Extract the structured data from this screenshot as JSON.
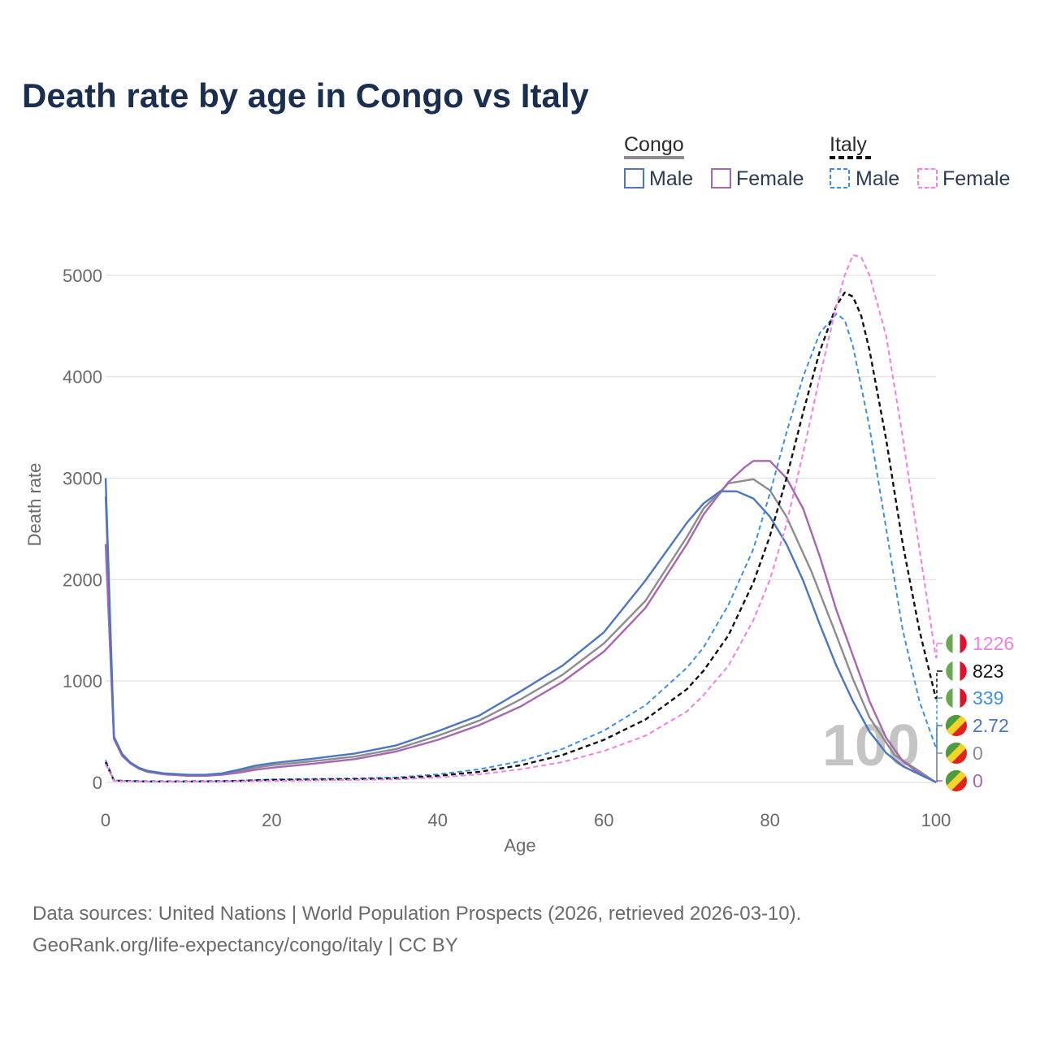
{
  "title": "Death rate by age in Congo vs Italy",
  "legend": {
    "groups": [
      {
        "name": "Congo",
        "items": [
          {
            "label": "Male"
          },
          {
            "label": "Female"
          }
        ]
      },
      {
        "name": "Italy",
        "items": [
          {
            "label": "Male"
          },
          {
            "label": "Female"
          }
        ]
      }
    ]
  },
  "colors": {
    "congo_male": "#4a76c2",
    "congo_female": "#a866b0",
    "congo_total": "#8c8c8c",
    "italy_male": "#3e8ee8",
    "italy_female": "#f27ee8",
    "italy_total": "#111111"
  },
  "current_age": "100",
  "source_lines": [
    "Data sources: United Nations | World Population Prospects (2026, retrieved 2026-03-10).",
    "GeoRank.org/life-expectancy/congo/italy | CC BY"
  ],
  "chart_data": {
    "type": "line",
    "title": "Death rate by age in Congo vs Italy",
    "xlabel": "Age",
    "ylabel": "Death rate",
    "xlim": [
      0,
      100
    ],
    "ylim": [
      0,
      5300
    ],
    "x_ticks": [
      0,
      20,
      40,
      60,
      80,
      100
    ],
    "y_ticks": [
      0,
      1000,
      2000,
      3000,
      4000,
      5000
    ],
    "grid": true,
    "series": [
      {
        "name": "Congo Total",
        "country": "Congo",
        "sex": "Total",
        "dashed": false,
        "color": "#8c8c8c",
        "points": [
          [
            0,
            2820
          ],
          [
            1,
            440
          ],
          [
            2,
            270
          ],
          [
            3,
            190
          ],
          [
            4,
            140
          ],
          [
            5,
            110
          ],
          [
            7,
            85
          ],
          [
            10,
            70
          ],
          [
            12,
            70
          ],
          [
            14,
            85
          ],
          [
            16,
            110
          ],
          [
            18,
            145
          ],
          [
            20,
            170
          ],
          [
            25,
            210
          ],
          [
            30,
            255
          ],
          [
            35,
            330
          ],
          [
            40,
            460
          ],
          [
            45,
            610
          ],
          [
            50,
            820
          ],
          [
            55,
            1060
          ],
          [
            60,
            1370
          ],
          [
            65,
            1790
          ],
          [
            70,
            2420
          ],
          [
            72,
            2700
          ],
          [
            75,
            2950
          ],
          [
            78,
            2990
          ],
          [
            80,
            2880
          ],
          [
            82,
            2620
          ],
          [
            85,
            2080
          ],
          [
            88,
            1450
          ],
          [
            90,
            1020
          ],
          [
            92,
            640
          ],
          [
            95,
            270
          ],
          [
            98,
            110
          ],
          [
            100,
            0
          ]
        ],
        "end_label": "0"
      },
      {
        "name": "Congo Female",
        "country": "Congo",
        "sex": "Female",
        "dashed": false,
        "color": "#a866b0",
        "points": [
          [
            0,
            2350
          ],
          [
            1,
            430
          ],
          [
            2,
            260
          ],
          [
            3,
            185
          ],
          [
            4,
            135
          ],
          [
            5,
            105
          ],
          [
            7,
            80
          ],
          [
            10,
            65
          ],
          [
            12,
            65
          ],
          [
            14,
            75
          ],
          [
            16,
            95
          ],
          [
            18,
            125
          ],
          [
            20,
            145
          ],
          [
            25,
            185
          ],
          [
            30,
            230
          ],
          [
            35,
            305
          ],
          [
            40,
            420
          ],
          [
            45,
            565
          ],
          [
            50,
            750
          ],
          [
            55,
            990
          ],
          [
            60,
            1290
          ],
          [
            65,
            1720
          ],
          [
            70,
            2350
          ],
          [
            72,
            2640
          ],
          [
            75,
            2960
          ],
          [
            77,
            3110
          ],
          [
            78,
            3170
          ],
          [
            80,
            3170
          ],
          [
            82,
            3000
          ],
          [
            84,
            2700
          ],
          [
            86,
            2230
          ],
          [
            88,
            1700
          ],
          [
            90,
            1250
          ],
          [
            92,
            800
          ],
          [
            94,
            440
          ],
          [
            96,
            210
          ],
          [
            98,
            90
          ],
          [
            100,
            0
          ]
        ],
        "end_label": "0"
      },
      {
        "name": "Congo Male",
        "country": "Congo",
        "sex": "Male",
        "dashed": false,
        "color": "#4a76c2",
        "points": [
          [
            0,
            3000
          ],
          [
            1,
            450
          ],
          [
            2,
            280
          ],
          [
            3,
            195
          ],
          [
            4,
            145
          ],
          [
            5,
            115
          ],
          [
            7,
            90
          ],
          [
            10,
            75
          ],
          [
            12,
            75
          ],
          [
            14,
            90
          ],
          [
            16,
            125
          ],
          [
            18,
            165
          ],
          [
            20,
            190
          ],
          [
            25,
            235
          ],
          [
            30,
            285
          ],
          [
            35,
            365
          ],
          [
            40,
            505
          ],
          [
            45,
            660
          ],
          [
            50,
            900
          ],
          [
            55,
            1150
          ],
          [
            60,
            1480
          ],
          [
            65,
            1990
          ],
          [
            70,
            2560
          ],
          [
            72,
            2750
          ],
          [
            74,
            2870
          ],
          [
            76,
            2870
          ],
          [
            78,
            2800
          ],
          [
            80,
            2620
          ],
          [
            82,
            2350
          ],
          [
            84,
            1990
          ],
          [
            86,
            1560
          ],
          [
            88,
            1150
          ],
          [
            90,
            800
          ],
          [
            92,
            500
          ],
          [
            94,
            290
          ],
          [
            96,
            160
          ],
          [
            98,
            80
          ],
          [
            100,
            2.72
          ]
        ],
        "end_label": "2.72"
      },
      {
        "name": "Italy Male",
        "country": "Italy",
        "sex": "Male",
        "dashed": true,
        "color": "#3e8ee8",
        "points": [
          [
            0,
            220
          ],
          [
            1,
            20
          ],
          [
            5,
            10
          ],
          [
            10,
            10
          ],
          [
            15,
            15
          ],
          [
            20,
            30
          ],
          [
            25,
            35
          ],
          [
            30,
            40
          ],
          [
            35,
            50
          ],
          [
            40,
            80
          ],
          [
            45,
            130
          ],
          [
            50,
            210
          ],
          [
            55,
            330
          ],
          [
            60,
            510
          ],
          [
            65,
            760
          ],
          [
            70,
            1130
          ],
          [
            72,
            1330
          ],
          [
            75,
            1750
          ],
          [
            78,
            2300
          ],
          [
            80,
            2850
          ],
          [
            82,
            3450
          ],
          [
            84,
            4000
          ],
          [
            86,
            4430
          ],
          [
            88,
            4620
          ],
          [
            89,
            4560
          ],
          [
            90,
            4300
          ],
          [
            92,
            3500
          ],
          [
            94,
            2500
          ],
          [
            96,
            1500
          ],
          [
            98,
            800
          ],
          [
            100,
            339
          ]
        ],
        "end_label": "339"
      },
      {
        "name": "Italy Total",
        "country": "Italy",
        "sex": "Total",
        "dashed": true,
        "color": "#111111",
        "points": [
          [
            0,
            200
          ],
          [
            1,
            18
          ],
          [
            5,
            10
          ],
          [
            10,
            10
          ],
          [
            15,
            12
          ],
          [
            20,
            25
          ],
          [
            25,
            28
          ],
          [
            30,
            32
          ],
          [
            35,
            40
          ],
          [
            40,
            65
          ],
          [
            45,
            105
          ],
          [
            50,
            170
          ],
          [
            55,
            270
          ],
          [
            60,
            420
          ],
          [
            65,
            620
          ],
          [
            70,
            920
          ],
          [
            72,
            1100
          ],
          [
            75,
            1450
          ],
          [
            78,
            1970
          ],
          [
            80,
            2430
          ],
          [
            82,
            3000
          ],
          [
            84,
            3650
          ],
          [
            86,
            4250
          ],
          [
            88,
            4700
          ],
          [
            89,
            4830
          ],
          [
            90,
            4790
          ],
          [
            91,
            4600
          ],
          [
            92,
            4260
          ],
          [
            94,
            3380
          ],
          [
            96,
            2350
          ],
          [
            98,
            1500
          ],
          [
            100,
            823
          ]
        ],
        "end_label": "823"
      },
      {
        "name": "Italy Female",
        "country": "Italy",
        "sex": "Female",
        "dashed": true,
        "color": "#f27ee8",
        "points": [
          [
            0,
            180
          ],
          [
            1,
            15
          ],
          [
            5,
            8
          ],
          [
            10,
            8
          ],
          [
            15,
            10
          ],
          [
            20,
            15
          ],
          [
            25,
            20
          ],
          [
            30,
            25
          ],
          [
            35,
            30
          ],
          [
            40,
            50
          ],
          [
            45,
            80
          ],
          [
            50,
            130
          ],
          [
            55,
            200
          ],
          [
            60,
            310
          ],
          [
            65,
            460
          ],
          [
            70,
            700
          ],
          [
            72,
            860
          ],
          [
            75,
            1150
          ],
          [
            78,
            1600
          ],
          [
            80,
            2000
          ],
          [
            82,
            2550
          ],
          [
            84,
            3250
          ],
          [
            86,
            4000
          ],
          [
            88,
            4700
          ],
          [
            89,
            5000
          ],
          [
            90,
            5200
          ],
          [
            91,
            5180
          ],
          [
            92,
            5000
          ],
          [
            94,
            4400
          ],
          [
            96,
            3400
          ],
          [
            98,
            2300
          ],
          [
            100,
            1226
          ]
        ],
        "end_label": "1226"
      }
    ]
  }
}
